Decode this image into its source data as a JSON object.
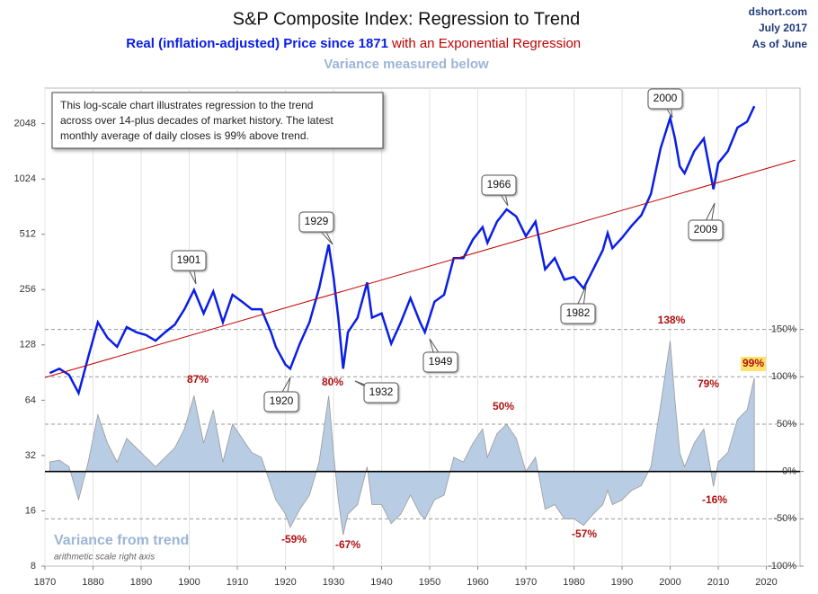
{
  "chart_data": {
    "type": "line",
    "title": "S&P Composite Index: Regression to Trend",
    "subtitle": "Real (inflation-adjusted) Price since 1871",
    "subtitle_extra": "with an Exponential Regression",
    "subtitle2": "Variance measured below",
    "source": [
      "dshort.com",
      "July 2017",
      "As of June"
    ],
    "note": [
      "This log-scale chart illustrates regression to the trend",
      "across over 14-plus decades of market history. The latest",
      "monthly average of daily closes is 99% above trend."
    ],
    "variance_title": "Variance from trend",
    "variance_subtitle": "arithmetic scale right axis",
    "log_y": true,
    "xlim": [
      1870,
      2027
    ],
    "xticks": [
      1870,
      1880,
      1890,
      1900,
      1910,
      1920,
      1930,
      1940,
      1950,
      1960,
      1970,
      1980,
      1990,
      2000,
      2010,
      2020
    ],
    "ylim": [
      8,
      3200
    ],
    "yticks": [
      8,
      16,
      32,
      64,
      128,
      256,
      512,
      1024,
      2048
    ],
    "y2lim": [
      -100,
      405
    ],
    "y2ticks": [
      {
        "value": -100,
        "label": "-100%"
      },
      {
        "value": -50,
        "label": "-50%"
      },
      {
        "value": 0,
        "label": "0%"
      },
      {
        "value": 50,
        "label": "50%"
      },
      {
        "value": 100,
        "label": "100%"
      },
      {
        "value": 150,
        "label": "150%"
      }
    ],
    "grid": "x",
    "x": [
      1871,
      1873,
      1875,
      1877,
      1879,
      1881,
      1883,
      1885,
      1887,
      1889,
      1891,
      1893,
      1895,
      1897,
      1899,
      1901,
      1903,
      1905,
      1907,
      1909,
      1911,
      1913,
      1915,
      1917,
      1918,
      1920,
      1921,
      1923,
      1925,
      1927,
      1929,
      1930,
      1931,
      1932,
      1933,
      1935,
      1937,
      1938,
      1940,
      1942,
      1944,
      1946,
      1948,
      1949,
      1951,
      1953,
      1955,
      1957,
      1959,
      1961,
      1962,
      1964,
      1966,
      1968,
      1970,
      1972,
      1974,
      1976,
      1978,
      1980,
      1982,
      1984,
      1986,
      1987,
      1988,
      1990,
      1992,
      1994,
      1996,
      1998,
      2000,
      2001,
      2002,
      2003,
      2005,
      2007,
      2009,
      2010,
      2012,
      2014,
      2016,
      2017.5
    ],
    "series": [
      {
        "name": "Real Price",
        "color": "#0a1ee6",
        "values": [
          90,
          95,
          88,
          70,
          110,
          170,
          140,
          125,
          160,
          150,
          145,
          135,
          150,
          165,
          200,
          255,
          190,
          250,
          170,
          240,
          220,
          200,
          200,
          150,
          125,
          100,
          95,
          130,
          170,
          260,
          450,
          300,
          180,
          95,
          150,
          180,
          280,
          180,
          190,
          130,
          170,
          230,
          170,
          150,
          220,
          240,
          380,
          380,
          480,
          560,
          460,
          600,
          700,
          640,
          500,
          600,
          330,
          380,
          290,
          300,
          260,
          330,
          420,
          520,
          430,
          490,
          570,
          650,
          850,
          1500,
          2200,
          1700,
          1200,
          1100,
          1450,
          1700,
          900,
          1250,
          1450,
          1950,
          2100,
          2550
        ]
      },
      {
        "name": "Variance",
        "color": "#b8cce4",
        "axis": "y2",
        "values": [
          10,
          12,
          5,
          -30,
          10,
          60,
          30,
          10,
          35,
          25,
          15,
          5,
          15,
          25,
          45,
          80,
          30,
          65,
          10,
          50,
          35,
          20,
          15,
          -15,
          -30,
          -45,
          -59,
          -40,
          -25,
          10,
          80,
          20,
          -30,
          -67,
          -45,
          -35,
          5,
          -35,
          -35,
          -55,
          -45,
          -25,
          -45,
          -50,
          -30,
          -25,
          15,
          10,
          30,
          45,
          15,
          40,
          50,
          35,
          0,
          15,
          -40,
          -35,
          -50,
          -50,
          -57,
          -45,
          -35,
          -20,
          -35,
          -30,
          -20,
          -15,
          5,
          70,
          138,
          75,
          20,
          5,
          30,
          45,
          -16,
          10,
          20,
          55,
          65,
          99
        ]
      },
      {
        "name": "Exponential Regression",
        "color": "#c00000",
        "x": [
          1870,
          2026
        ],
        "values": [
          85,
          1296
        ]
      }
    ],
    "price_callouts": [
      "1901",
      "1920",
      "1929",
      "1932",
      "1949",
      "1966",
      "1982",
      "2000",
      "2009"
    ],
    "variance_labels": [
      "87%",
      "80%",
      "-59%",
      "-67%",
      "50%",
      "-57%",
      "138%",
      "79%",
      "-16%",
      "99%"
    ]
  }
}
